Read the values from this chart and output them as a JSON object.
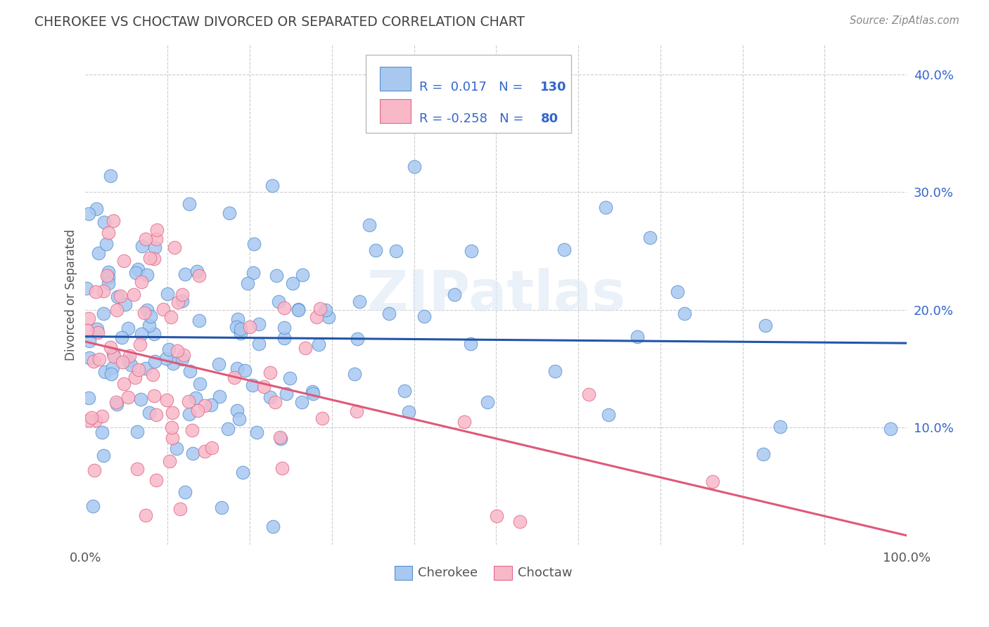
{
  "title": "CHEROKEE VS CHOCTAW DIVORCED OR SEPARATED CORRELATION CHART",
  "source": "Source: ZipAtlas.com",
  "ylabel": "Divorced or Separated",
  "xlim": [
    0,
    1.0
  ],
  "ylim": [
    0,
    0.425
  ],
  "cherokee_color": "#a8c8f0",
  "choctaw_color": "#f8b8c8",
  "cherokee_edge_color": "#5590d0",
  "choctaw_edge_color": "#e06888",
  "cherokee_line_color": "#2255aa",
  "choctaw_line_color": "#e05878",
  "cherokee_R": 0.017,
  "cherokee_N": 130,
  "choctaw_R": -0.258,
  "choctaw_N": 80,
  "watermark": "ZIPatlas",
  "background_color": "#ffffff",
  "grid_color": "#cccccc",
  "title_color": "#444444",
  "legend_text_color": "#3366cc",
  "ytick_color": "#3366cc"
}
